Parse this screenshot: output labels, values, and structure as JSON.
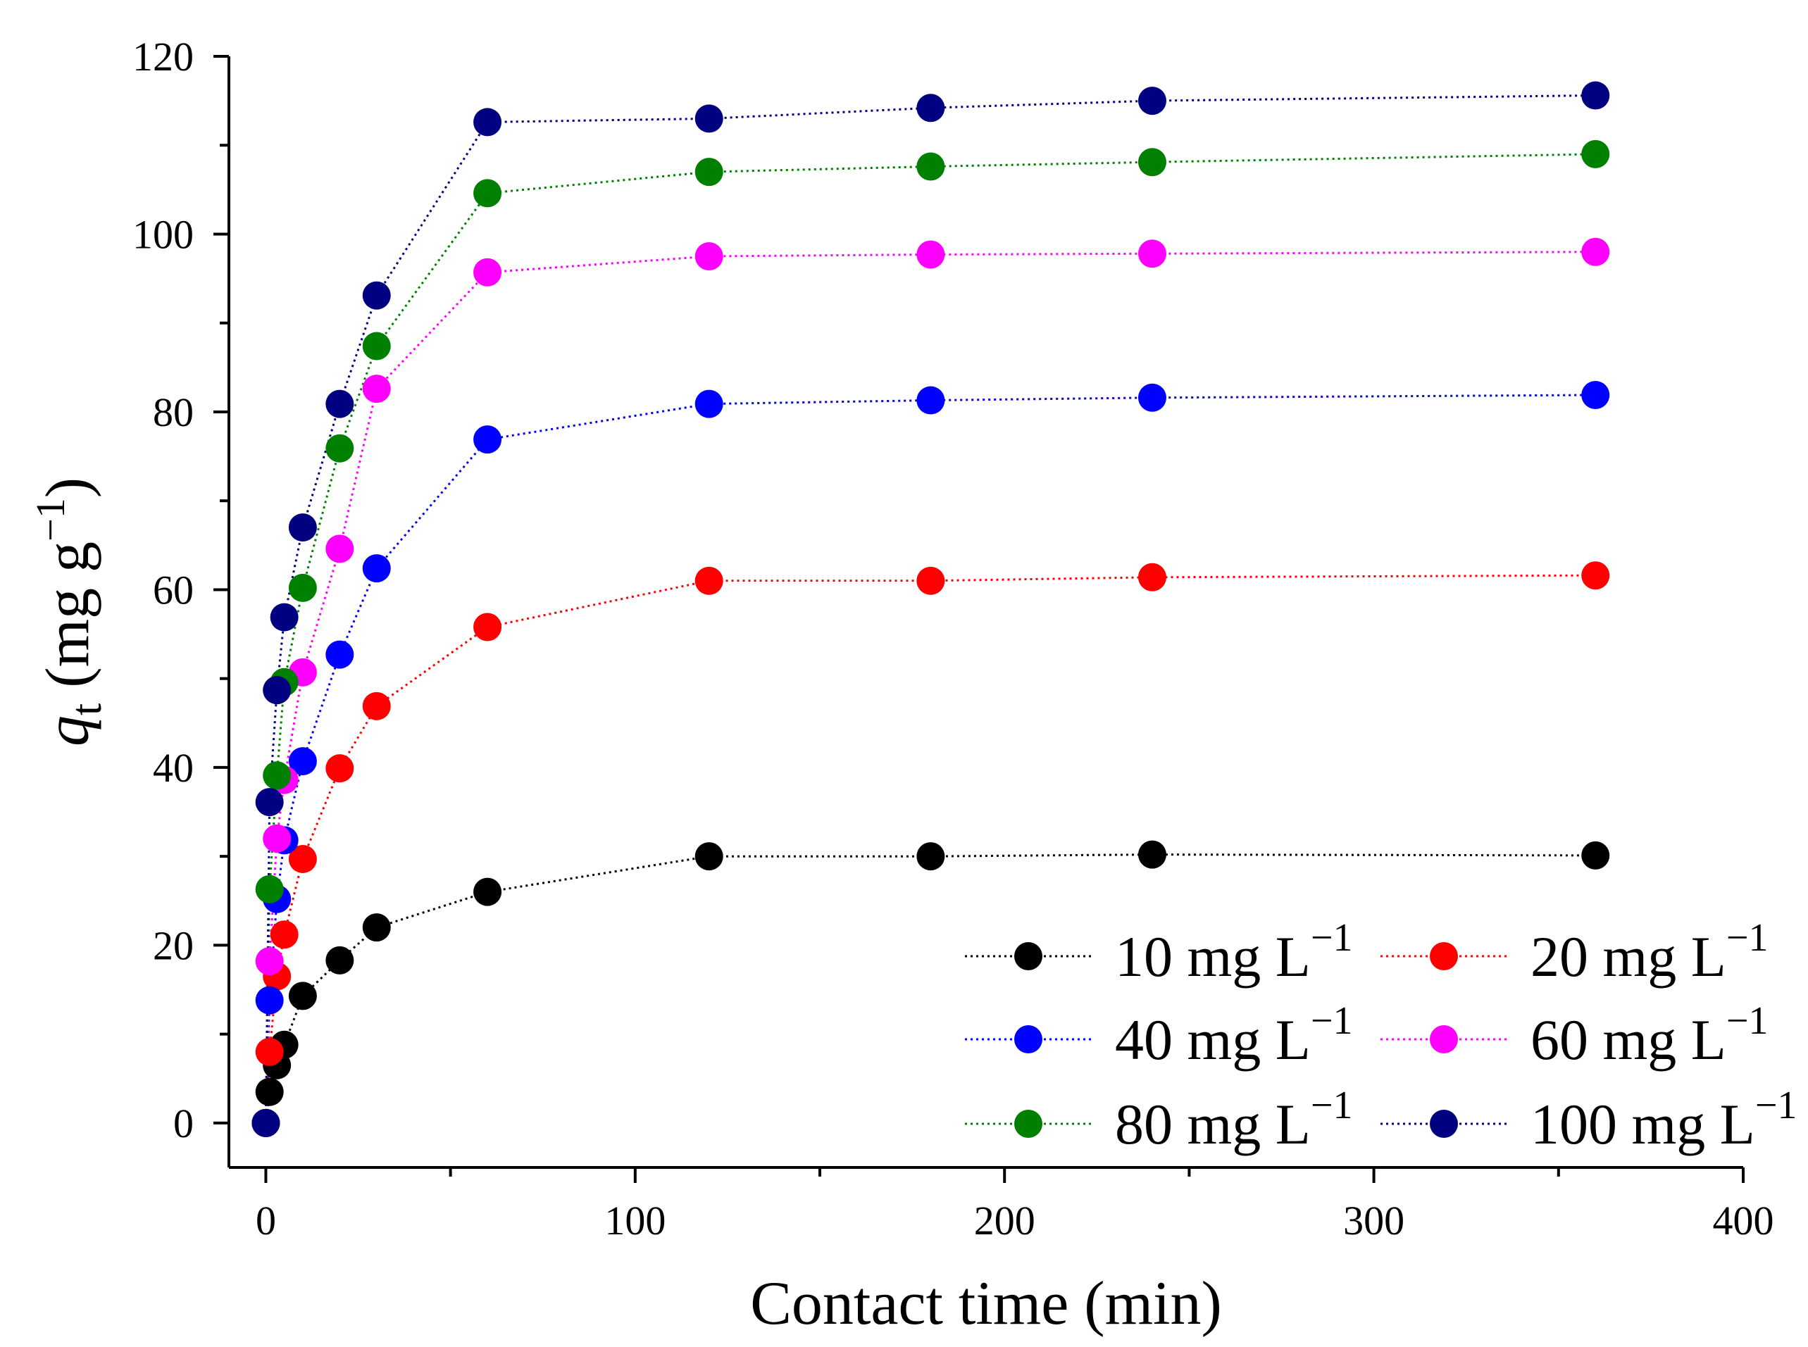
{
  "chart_data": {
    "type": "scatter",
    "title": "",
    "xlabel": "Contact time (min)",
    "ylabel": {
      "symbol": "q",
      "subscript": "t",
      "unit": " (mg g",
      "exponent": "−1",
      "close": ")"
    },
    "xlim": [
      -10,
      400
    ],
    "ylim": [
      -5,
      120
    ],
    "xticks": [
      0,
      100,
      200,
      300,
      400
    ],
    "xtick_labels": [
      "0",
      "100",
      "200",
      "300",
      "400"
    ],
    "yticks": [
      0,
      20,
      40,
      60,
      80,
      100,
      120
    ],
    "ytick_labels": [
      "0",
      "20",
      "40",
      "60",
      "80",
      "100",
      "120"
    ],
    "line_style": "dotted",
    "legend_position": "bottom-right",
    "x": [
      0,
      1,
      3,
      5,
      10,
      20,
      30,
      60,
      120,
      180,
      240,
      360
    ],
    "series": [
      {
        "name": "10 mg L",
        "exp": "−1",
        "color": "#000000",
        "values": [
          0,
          3.5,
          6.5,
          8.8,
          14.3,
          18.3,
          22,
          26,
          30,
          30,
          30.2,
          30.1
        ]
      },
      {
        "name": "20 mg L",
        "exp": "−1",
        "color": "#ff0000",
        "values": [
          0,
          8,
          16.5,
          21.2,
          29.7,
          39.9,
          46.9,
          55.8,
          61,
          61,
          61.4,
          61.6
        ]
      },
      {
        "name": "40 mg L",
        "exp": "−1",
        "color": "#0000ff",
        "values": [
          0,
          13.8,
          25.2,
          31.8,
          40.7,
          52.7,
          62.4,
          76.9,
          80.9,
          81.3,
          81.6,
          81.9
        ]
      },
      {
        "name": "60 mg L",
        "exp": "−1",
        "color": "#ff00ff",
        "values": [
          0,
          18.2,
          32,
          38.6,
          50.7,
          64.6,
          82.6,
          95.7,
          97.5,
          97.7,
          97.8,
          98
        ]
      },
      {
        "name": "80 mg L",
        "exp": "−1",
        "color": "#008000",
        "values": [
          0,
          26.3,
          39.1,
          49.6,
          60.2,
          75.9,
          87.4,
          104.6,
          107,
          107.6,
          108.1,
          109
        ]
      },
      {
        "name": "100 mg L",
        "exp": "−1",
        "color": "#000080",
        "values": [
          0,
          36.1,
          48.7,
          56.9,
          67,
          80.9,
          93.1,
          112.6,
          113,
          114.2,
          115,
          115.6
        ]
      }
    ]
  }
}
